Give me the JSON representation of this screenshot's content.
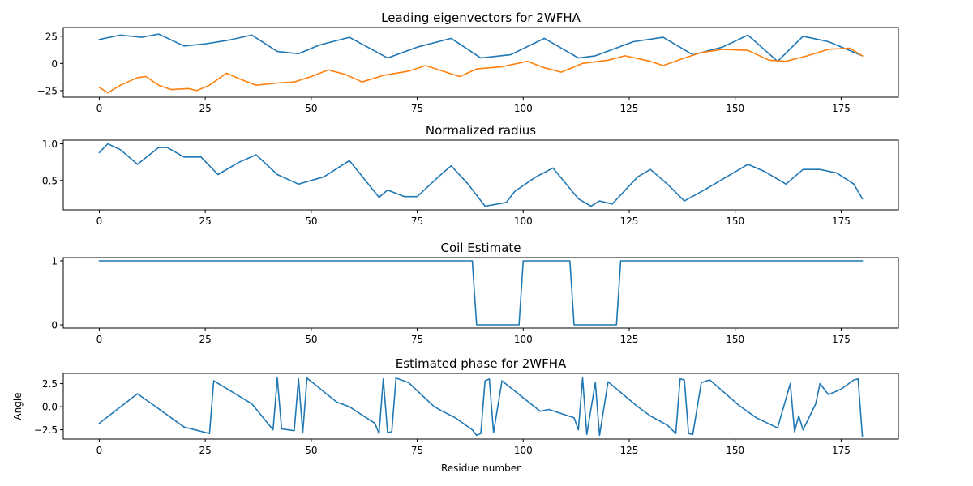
{
  "chart_data": [
    {
      "type": "line",
      "title": "Leading eigenvectors for 2WFHA",
      "xlabel": "",
      "ylabel": "",
      "xlim": [
        -8.5,
        188.5
      ],
      "ylim": [
        -31,
        33
      ],
      "xticks": [
        0,
        25,
        50,
        75,
        100,
        125,
        150,
        175
      ],
      "xtick_labels": [
        "0",
        "25",
        "50",
        "75",
        "100",
        "125",
        "150",
        "175"
      ],
      "yticks": [
        25,
        0,
        -25
      ],
      "ytick_labels": [
        "25",
        "0",
        "−25"
      ],
      "grid": false,
      "series": [
        {
          "color": "#1f77b4",
          "x": [
            0,
            5,
            10,
            14,
            20,
            25,
            30,
            36,
            42,
            47,
            52,
            59,
            68,
            75,
            83,
            90,
            97,
            105,
            113,
            117,
            126,
            133,
            140,
            147,
            153,
            160,
            166,
            172,
            180
          ],
          "y": [
            22,
            26,
            24,
            27,
            16,
            18,
            21,
            26,
            11,
            9,
            17,
            24,
            5,
            15,
            23,
            5,
            8,
            23,
            5,
            7,
            20,
            24,
            8,
            15,
            26,
            2,
            25,
            20,
            7
          ]
        },
        {
          "color": "#ff7f0e",
          "x": [
            0,
            2,
            5,
            9,
            11,
            14,
            17,
            21,
            23,
            26,
            30,
            33,
            37,
            42,
            46,
            50,
            54,
            58,
            62,
            67,
            73,
            77,
            81,
            85,
            89,
            95,
            101,
            105,
            109,
            114,
            120,
            124,
            130,
            133,
            138,
            142,
            147,
            153,
            158,
            162,
            167,
            172,
            177,
            180
          ],
          "y": [
            -22,
            -27,
            -20,
            -13,
            -12,
            -20,
            -24,
            -23,
            -25,
            -20,
            -9,
            -14,
            -20,
            -18,
            -17,
            -12,
            -6,
            -10,
            -17,
            -11,
            -7,
            -2,
            -7,
            -12,
            -5,
            -3,
            2,
            -4,
            -8,
            0,
            3,
            7,
            2,
            -2,
            5,
            10,
            13,
            12,
            3,
            2,
            7,
            13,
            14,
            7
          ]
        }
      ]
    },
    {
      "type": "line",
      "title": "Normalized radius",
      "xlabel": "",
      "ylabel": "",
      "xlim": [
        -8.5,
        188.5
      ],
      "ylim": [
        0.1,
        1.05
      ],
      "xticks": [
        0,
        25,
        50,
        75,
        100,
        125,
        150,
        175
      ],
      "xtick_labels": [
        "0",
        "25",
        "50",
        "75",
        "100",
        "125",
        "150",
        "175"
      ],
      "yticks": [
        1.0,
        0.5
      ],
      "ytick_labels": [
        "1.0",
        "0.5"
      ],
      "grid": false,
      "series": [
        {
          "color": "#1f77b4",
          "x": [
            0,
            2,
            5,
            9,
            14,
            16,
            20,
            24,
            28,
            33,
            37,
            42,
            47,
            53,
            59,
            66,
            68,
            72,
            75,
            80,
            83,
            87,
            91,
            96,
            98,
            103,
            107,
            113,
            116,
            118,
            121,
            127,
            130,
            134,
            138,
            143,
            148,
            153,
            157,
            162,
            166,
            170,
            174,
            178,
            180
          ],
          "y": [
            0.88,
            1.0,
            0.92,
            0.72,
            0.95,
            0.95,
            0.82,
            0.82,
            0.58,
            0.75,
            0.85,
            0.58,
            0.45,
            0.55,
            0.77,
            0.27,
            0.37,
            0.28,
            0.28,
            0.55,
            0.7,
            0.45,
            0.15,
            0.2,
            0.35,
            0.55,
            0.67,
            0.25,
            0.15,
            0.22,
            0.18,
            0.55,
            0.65,
            0.45,
            0.22,
            0.38,
            0.55,
            0.72,
            0.62,
            0.45,
            0.65,
            0.65,
            0.6,
            0.45,
            0.25
          ]
        }
      ]
    },
    {
      "type": "line",
      "title": "Coil Estimate",
      "xlabel": "",
      "ylabel": "",
      "xlim": [
        -8.5,
        188.5
      ],
      "ylim": [
        -0.05,
        1.05
      ],
      "xticks": [
        0,
        25,
        50,
        75,
        100,
        125,
        150,
        175
      ],
      "xtick_labels": [
        "0",
        "25",
        "50",
        "75",
        "100",
        "125",
        "150",
        "175"
      ],
      "yticks": [
        1,
        0
      ],
      "ytick_labels": [
        "1",
        "0"
      ],
      "grid": false,
      "series": [
        {
          "color": "#1f77b4",
          "x": [
            0,
            88,
            89,
            99,
            100,
            111,
            112,
            122,
            123,
            180
          ],
          "y": [
            1,
            1,
            0,
            0,
            1,
            1,
            0,
            0,
            1,
            1
          ]
        }
      ]
    },
    {
      "type": "line",
      "title": "Estimated phase for 2WFHA",
      "xlabel": "Residue number",
      "ylabel": "Angle",
      "xlim": [
        -8.5,
        188.5
      ],
      "ylim": [
        -3.5,
        3.6
      ],
      "xticks": [
        0,
        25,
        50,
        75,
        100,
        125,
        150,
        175
      ],
      "xtick_labels": [
        "0",
        "25",
        "50",
        "75",
        "100",
        "125",
        "150",
        "175"
      ],
      "yticks": [
        2.5,
        0.0,
        -2.5
      ],
      "ytick_labels": [
        "2.5",
        "0.0",
        "−2.5"
      ],
      "grid": false,
      "series": [
        {
          "color": "#1f77b4",
          "x": [
            0,
            9,
            13,
            20,
            26,
            27,
            36,
            41,
            42,
            43,
            46,
            47,
            48,
            49,
            56,
            59,
            65,
            66,
            67,
            68,
            69,
            70,
            73,
            79,
            81,
            84,
            88,
            89,
            90,
            91,
            92,
            93,
            95,
            104,
            106,
            112,
            113,
            114,
            115,
            117,
            118,
            120,
            127,
            130,
            134,
            136,
            137,
            138,
            139,
            140,
            142,
            144,
            147,
            151,
            155,
            160,
            163,
            164,
            165,
            166,
            169,
            170,
            172,
            175,
            178,
            179,
            180
          ],
          "y": [
            -1.8,
            1.4,
            0.1,
            -2.2,
            -2.9,
            2.8,
            0.3,
            -2.5,
            3.1,
            -2.4,
            -2.6,
            3.0,
            -2.8,
            3.1,
            0.5,
            0.0,
            -1.8,
            -2.9,
            3.0,
            -2.8,
            -2.7,
            3.1,
            2.6,
            0.0,
            -0.5,
            -1.2,
            -2.5,
            -3.1,
            -2.9,
            2.8,
            3.0,
            -2.8,
            2.8,
            -0.5,
            -0.3,
            -1.2,
            -2.5,
            3.1,
            -3.0,
            2.6,
            -3.1,
            2.7,
            0.0,
            -1.0,
            -2.0,
            -2.9,
            3.0,
            2.9,
            -2.9,
            -3.0,
            2.6,
            2.9,
            1.7,
            0.1,
            -1.2,
            -2.3,
            2.5,
            -2.7,
            -1.0,
            -2.5,
            0.3,
            2.5,
            1.3,
            1.9,
            2.9,
            3.0,
            -3.2
          ]
        }
      ]
    }
  ]
}
